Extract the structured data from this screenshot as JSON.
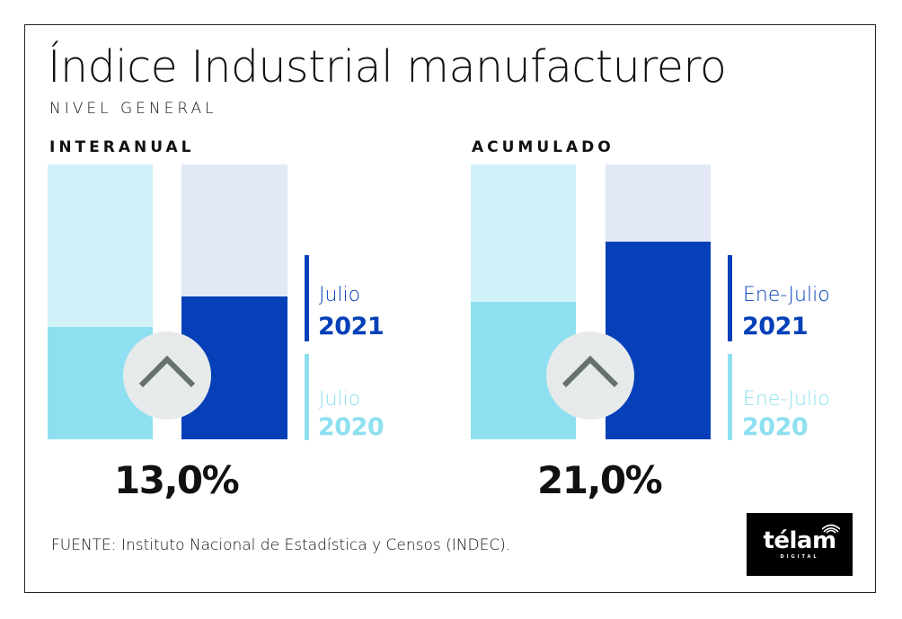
{
  "header": {
    "title": "Índice Industrial manufacturero",
    "subtitle": "NIVEL GENERAL"
  },
  "colors": {
    "dark_blue": "#0540b8",
    "light_blue": "#8ee0f0",
    "dark_blue_bg": "#e2e8f6",
    "light_blue_bg": "#d0f1f7",
    "circle": "#e6eaea",
    "arrow": "#66706e"
  },
  "chart_data": [
    {
      "type": "bar",
      "title": "INTERANUAL",
      "categories": [
        "Julio 2020",
        "Julio 2021"
      ],
      "series": [
        {
          "name": "Julio 2020",
          "value": 41
        },
        {
          "name": "Julio 2021",
          "value": 52
        }
      ],
      "value_note": "relative bar fill levels (percent of bar height), estimated",
      "ylim": [
        0,
        100
      ],
      "change_label": "13,0%",
      "change_direction": "up",
      "legend": [
        {
          "label": "Julio",
          "year": "2021"
        },
        {
          "label": "Julio",
          "year": "2020"
        }
      ]
    },
    {
      "type": "bar",
      "title": "ACUMULADO",
      "categories": [
        "Ene-Julio 2020",
        "Ene-Julio 2021"
      ],
      "series": [
        {
          "name": "Ene-Julio 2020",
          "value": 50
        },
        {
          "name": "Ene-Julio 2021",
          "value": 72
        }
      ],
      "value_note": "relative bar fill levels (percent of bar height), estimated",
      "ylim": [
        0,
        100
      ],
      "change_label": "21,0%",
      "change_direction": "up",
      "legend": [
        {
          "label": "Ene-Julio",
          "year": "2021"
        },
        {
          "label": "Ene-Julio",
          "year": "2020"
        }
      ]
    }
  ],
  "footer": {
    "source": "FUENTE: Instituto Nacional de Estadística y Censos (INDEC).",
    "logo_text": "télam",
    "logo_sub": "DIGITAL"
  }
}
